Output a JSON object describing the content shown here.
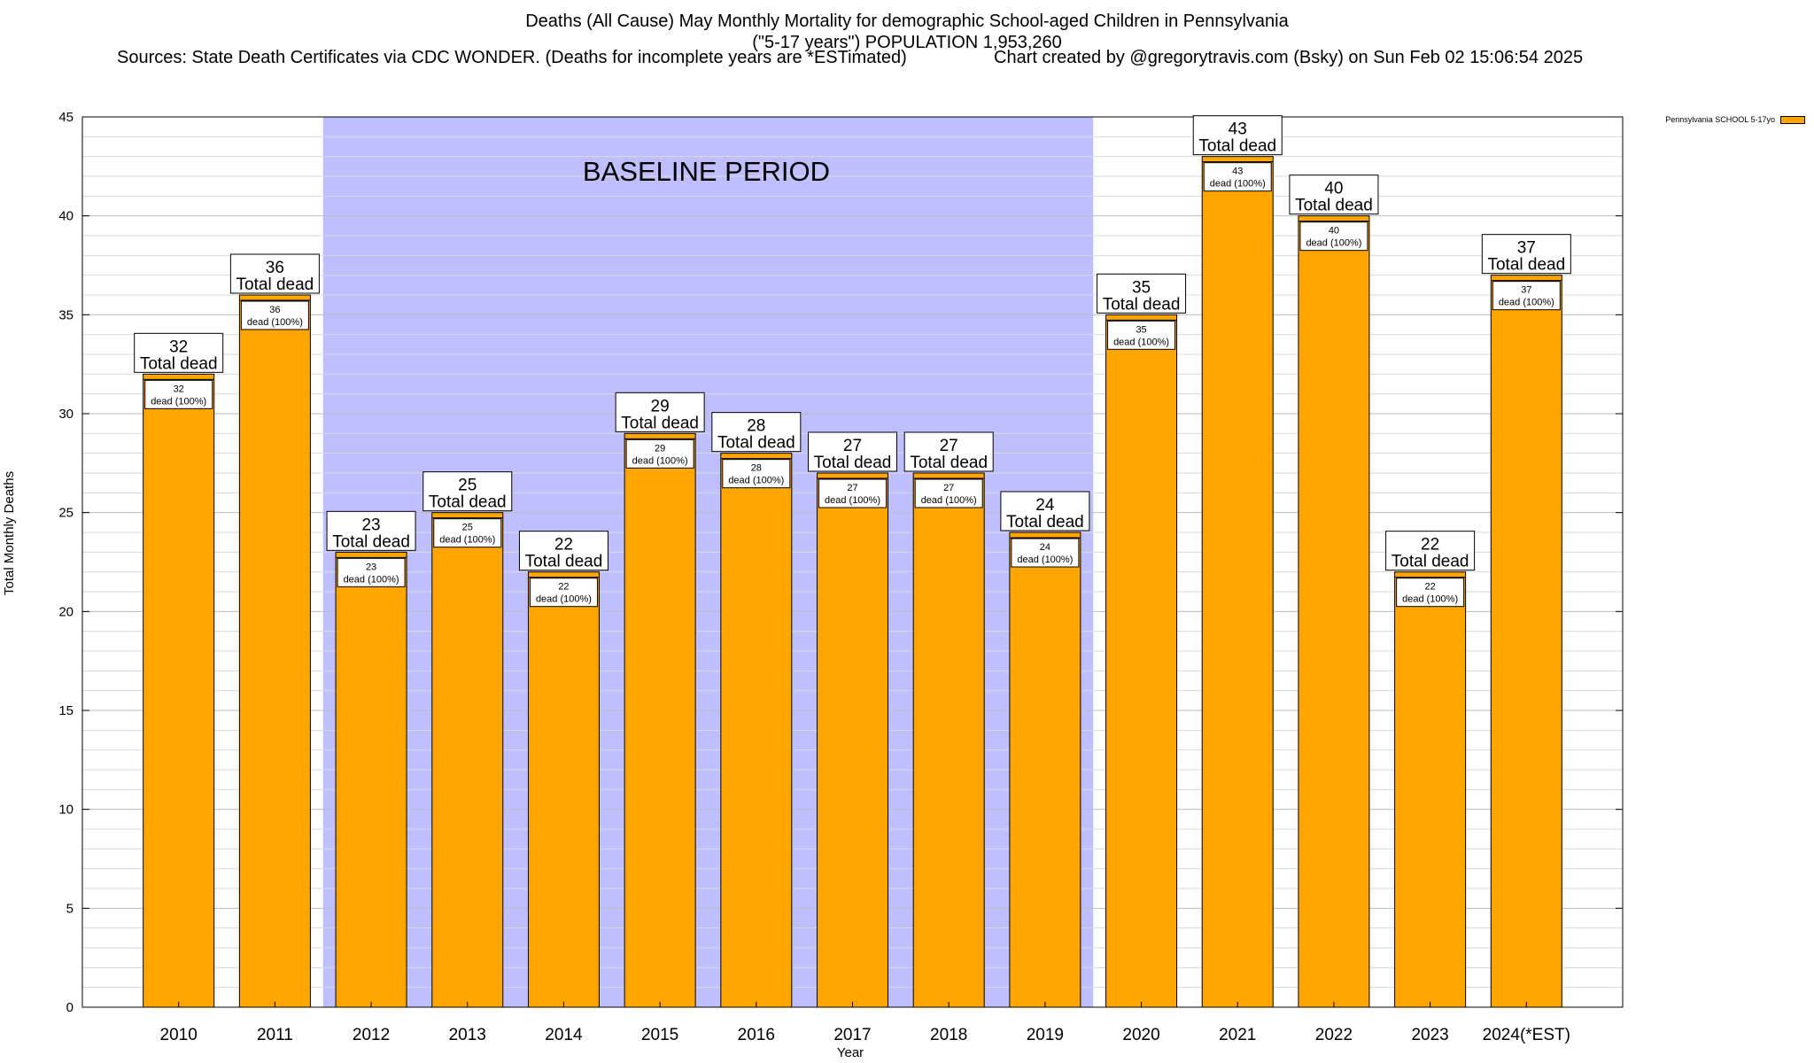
{
  "chart_data": {
    "type": "bar",
    "title": "Deaths (All Cause) May Monthly Mortality for demographic School-aged Children in Pennsylvania",
    "subtitle": "(\"5-17 years\") POPULATION 1,953,260",
    "sources": "Sources: State Death Certificates via CDC WONDER. (Deaths for incomplete years are *ESTimated)",
    "credit": "Chart created by @gregorytravis.com (Bsky) on Sun Feb 02 15:06:54 2025",
    "xlabel": "Year",
    "ylabel": "Total Monthly Deaths",
    "ylim": [
      0,
      45
    ],
    "yticks": [
      0,
      5,
      10,
      15,
      20,
      25,
      30,
      35,
      40,
      45
    ],
    "grid": "horizontal",
    "legend_position": "top-right",
    "categories": [
      "2010",
      "2011",
      "2012",
      "2013",
      "2014",
      "2015",
      "2016",
      "2017",
      "2018",
      "2019",
      "2020",
      "2021",
      "2022",
      "2023",
      "2024(*EST)"
    ],
    "series": [
      {
        "name": "Pennsylvania SCHOOL 5-17yo",
        "color": "#FFA500",
        "values": [
          32,
          36,
          23,
          25,
          22,
          29,
          28,
          27,
          27,
          24,
          35,
          43,
          40,
          22,
          37
        ]
      }
    ],
    "total_label": "Total dead",
    "inner_label": "dead (100%)",
    "shaded_region": {
      "label": "BASELINE PERIOD",
      "from": "2012",
      "to": "2019",
      "color": "#BFBFFF"
    }
  }
}
